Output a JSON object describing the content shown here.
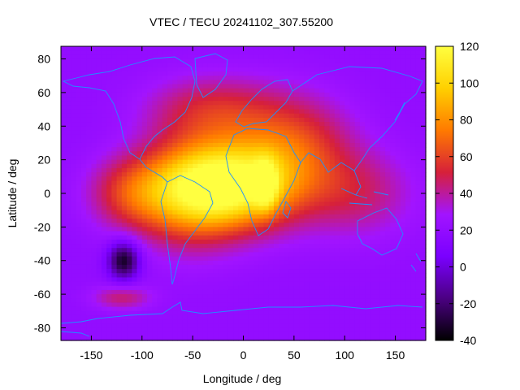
{
  "chart_data": {
    "type": "heatmap",
    "title": "VTEC / TECU 20241102_307.55200",
    "xlabel": "Longitude / deg",
    "ylabel": "Latitude / deg",
    "xlim": [
      -180,
      180
    ],
    "ylim": [
      -87.5,
      87.5
    ],
    "x_ticks": [
      -150,
      -100,
      -50,
      0,
      50,
      100,
      150
    ],
    "y_ticks": [
      -80,
      -60,
      -40,
      -20,
      0,
      20,
      40,
      60,
      80
    ],
    "colorbar": {
      "min": -40,
      "max": 120,
      "ticks": [
        -40,
        -20,
        0,
        20,
        40,
        60,
        80,
        100,
        120
      ],
      "palette": [
        "#000000",
        "#4b0082",
        "#7a00ff",
        "#a214ff",
        "#d6203a",
        "#ff7a00",
        "#ffd000",
        "#ffff40"
      ]
    },
    "background_level": 20,
    "features": [
      {
        "lon": -10,
        "lat": 5,
        "peak": 95,
        "sx": 45,
        "sy": 18
      },
      {
        "lon": -55,
        "lat": 0,
        "peak": 45,
        "sx": 35,
        "sy": 22
      },
      {
        "lon": 22,
        "lat": 5,
        "peak": 45,
        "sx": 8,
        "sy": 10
      },
      {
        "lon": -110,
        "lat": 0,
        "peak": 35,
        "sx": 30,
        "sy": 15
      },
      {
        "lon": 50,
        "lat": 30,
        "peak": 35,
        "sx": 40,
        "sy": 20
      },
      {
        "lon": -30,
        "lat": 50,
        "peak": 30,
        "sx": 45,
        "sy": 14
      },
      {
        "lon": 110,
        "lat": 0,
        "peak": 25,
        "sx": 40,
        "sy": 18
      },
      {
        "lon": -120,
        "lat": -62,
        "peak": 25,
        "sx": 20,
        "sy": 5
      },
      {
        "lon": -118,
        "lat": -40,
        "peak": -55,
        "sx": 11,
        "sy": 8
      }
    ],
    "coastline_color": "#1e90ff"
  }
}
